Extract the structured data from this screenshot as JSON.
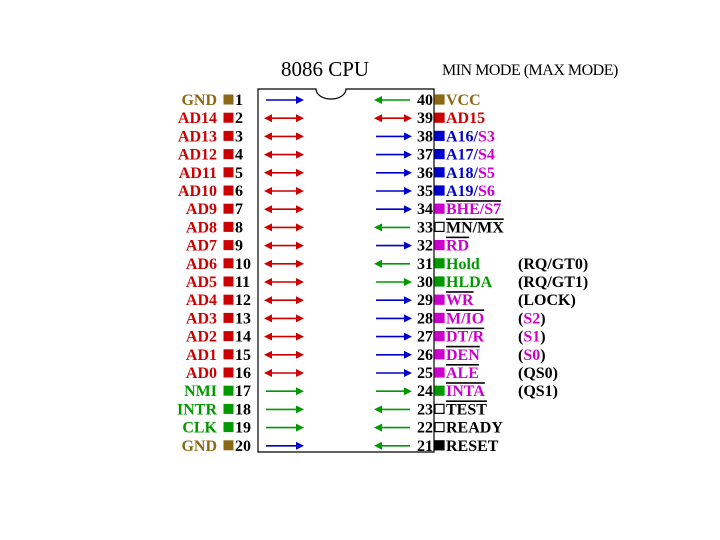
{
  "title": "8086 CPU",
  "mode_header": "MIN  MODE  (MAX  MODE)",
  "colors": {
    "power": "#8B6914",
    "address": "#CC0000",
    "status": "#0000CC",
    "control": "#009900",
    "magenta": "#CC00CC",
    "black": "#000000"
  },
  "left_pins": [
    {
      "num": "1",
      "name": "GND",
      "color": "#8B6914",
      "box": "power",
      "arrow": "in"
    },
    {
      "num": "2",
      "name": "AD14",
      "color": "#CC0000",
      "box": "address",
      "arrow": "bi"
    },
    {
      "num": "3",
      "name": "AD13",
      "color": "#CC0000",
      "box": "address",
      "arrow": "bi"
    },
    {
      "num": "4",
      "name": "AD12",
      "color": "#CC0000",
      "box": "address",
      "arrow": "bi"
    },
    {
      "num": "5",
      "name": "AD11",
      "color": "#CC0000",
      "box": "address",
      "arrow": "bi"
    },
    {
      "num": "6",
      "name": "AD10",
      "color": "#CC0000",
      "box": "address",
      "arrow": "bi"
    },
    {
      "num": "7",
      "name": "AD9",
      "color": "#CC0000",
      "box": "address",
      "arrow": "bi"
    },
    {
      "num": "8",
      "name": "AD8",
      "color": "#CC0000",
      "box": "address",
      "arrow": "bi"
    },
    {
      "num": "9",
      "name": "AD7",
      "color": "#CC0000",
      "box": "address",
      "arrow": "bi"
    },
    {
      "num": "10",
      "name": "AD6",
      "color": "#CC0000",
      "box": "address",
      "arrow": "bi"
    },
    {
      "num": "11",
      "name": "AD5",
      "color": "#CC0000",
      "box": "address",
      "arrow": "bi"
    },
    {
      "num": "12",
      "name": "AD4",
      "color": "#CC0000",
      "box": "address",
      "arrow": "bi"
    },
    {
      "num": "13",
      "name": "AD3",
      "color": "#CC0000",
      "box": "address",
      "arrow": "bi"
    },
    {
      "num": "14",
      "name": "AD2",
      "color": "#CC0000",
      "box": "address",
      "arrow": "bi"
    },
    {
      "num": "15",
      "name": "AD1",
      "color": "#CC0000",
      "box": "address",
      "arrow": "bi"
    },
    {
      "num": "16",
      "name": "AD0",
      "color": "#CC0000",
      "box": "address",
      "arrow": "bi"
    },
    {
      "num": "17",
      "name": "NMI",
      "color": "#009900",
      "box": "control",
      "arrow": "in"
    },
    {
      "num": "18",
      "name": "INTR",
      "color": "#009900",
      "box": "control",
      "arrow": "in"
    },
    {
      "num": "19",
      "name": "CLK",
      "color": "#009900",
      "box": "control",
      "arrow": "in"
    },
    {
      "num": "20",
      "name": "GND",
      "color": "#8B6914",
      "box": "power",
      "arrow": "in"
    }
  ],
  "right_pins": [
    {
      "num": "40",
      "box": "power",
      "arrow": "in",
      "arrow_color": "#009900",
      "segments": [
        {
          "text": "VCC",
          "color": "#8B6914"
        }
      ]
    },
    {
      "num": "39",
      "box": "address",
      "arrow": "bi",
      "arrow_color": "#CC0000",
      "segments": [
        {
          "text": "AD15",
          "color": "#CC0000"
        }
      ]
    },
    {
      "num": "38",
      "box": "status",
      "arrow": "out",
      "arrow_color": "#0000CC",
      "segments": [
        {
          "text": "A16/",
          "color": "#0000CC"
        },
        {
          "text": "S3",
          "color": "#CC00CC"
        }
      ]
    },
    {
      "num": "37",
      "box": "status",
      "arrow": "out",
      "arrow_color": "#0000CC",
      "segments": [
        {
          "text": "A17/",
          "color": "#0000CC"
        },
        {
          "text": "S4",
          "color": "#CC00CC"
        }
      ]
    },
    {
      "num": "36",
      "box": "status",
      "arrow": "out",
      "arrow_color": "#0000CC",
      "segments": [
        {
          "text": "A18/",
          "color": "#0000CC"
        },
        {
          "text": "S5",
          "color": "#CC00CC"
        }
      ]
    },
    {
      "num": "35",
      "box": "status",
      "arrow": "out",
      "arrow_color": "#0000CC",
      "segments": [
        {
          "text": "A19/",
          "color": "#0000CC"
        },
        {
          "text": "S6",
          "color": "#CC00CC"
        }
      ]
    },
    {
      "num": "34",
      "box": "magenta",
      "arrow": "out",
      "arrow_color": "#0000CC",
      "overline": true,
      "segments": [
        {
          "text": "BHE/S7",
          "color": "#CC00CC"
        }
      ]
    },
    {
      "num": "33",
      "box": "hollow",
      "arrow": "in",
      "arrow_color": "#009900",
      "overline": true,
      "segments": [
        {
          "text": "MN/MX",
          "color": "#000000"
        }
      ]
    },
    {
      "num": "32",
      "box": "magenta",
      "arrow": "out",
      "arrow_color": "#0000CC",
      "overline": true,
      "segments": [
        {
          "text": "RD",
          "color": "#CC00CC"
        }
      ]
    },
    {
      "num": "31",
      "box": "control",
      "arrow": "in",
      "arrow_color": "#009900",
      "segments": [
        {
          "text": "Hold",
          "color": "#009900"
        }
      ]
    },
    {
      "num": "30",
      "box": "control",
      "arrow": "out",
      "arrow_color": "#009900",
      "segments": [
        {
          "text": "HLDA",
          "color": "#009900"
        }
      ]
    },
    {
      "num": "29",
      "box": "magenta",
      "arrow": "out",
      "arrow_color": "#0000CC",
      "overline": true,
      "segments": [
        {
          "text": "WR",
          "color": "#CC00CC"
        }
      ]
    },
    {
      "num": "28",
      "box": "magenta",
      "arrow": "out",
      "arrow_color": "#0000CC",
      "overline": true,
      "segments": [
        {
          "text": "M/IO",
          "color": "#CC00CC"
        }
      ]
    },
    {
      "num": "27",
      "box": "magenta",
      "arrow": "out",
      "arrow_color": "#0000CC",
      "overline": true,
      "segments": [
        {
          "text": "DT/R",
          "color": "#CC00CC"
        }
      ]
    },
    {
      "num": "26",
      "box": "magenta",
      "arrow": "out",
      "arrow_color": "#0000CC",
      "overline": true,
      "segments": [
        {
          "text": "DEN",
          "color": "#CC00CC"
        }
      ]
    },
    {
      "num": "25",
      "box": "magenta",
      "arrow": "out",
      "arrow_color": "#0000CC",
      "overline": true,
      "segments": [
        {
          "text": "ALE",
          "color": "#CC00CC"
        }
      ]
    },
    {
      "num": "24",
      "box": "control",
      "arrow": "out",
      "arrow_color": "#009900",
      "overline": true,
      "segments": [
        {
          "text": "INTA",
          "color": "#CC00CC"
        }
      ]
    },
    {
      "num": "23",
      "box": "hollow",
      "arrow": "in",
      "arrow_color": "#009900",
      "overline": true,
      "segments": [
        {
          "text": "TEST",
          "color": "#000000"
        }
      ]
    },
    {
      "num": "22",
      "box": "hollow",
      "arrow": "in",
      "arrow_color": "#009900",
      "segments": [
        {
          "text": "READY",
          "color": "#000000"
        }
      ]
    },
    {
      "num": "21",
      "box": "black",
      "arrow": "in",
      "arrow_color": "#009900",
      "segments": [
        {
          "text": "RESET",
          "color": "#000000"
        }
      ]
    }
  ],
  "max_mode": [
    {
      "row": 9,
      "overline": true,
      "segments": [
        {
          "text": "(RQ/GT0)",
          "color": "#000000"
        }
      ]
    },
    {
      "row": 10,
      "overline": true,
      "segments": [
        {
          "text": "(RQ/GT1)",
          "color": "#000000"
        }
      ]
    },
    {
      "row": 11,
      "overline": true,
      "segments": [
        {
          "text": "(LOCK)",
          "color": "#000000"
        }
      ]
    },
    {
      "row": 12,
      "overline": true,
      "segments": [
        {
          "text": "(",
          "color": "#000000"
        },
        {
          "text": "S2",
          "color": "#CC00CC"
        },
        {
          "text": ")",
          "color": "#000000"
        }
      ]
    },
    {
      "row": 13,
      "overline": true,
      "segments": [
        {
          "text": "(",
          "color": "#000000"
        },
        {
          "text": "S1",
          "color": "#CC00CC"
        },
        {
          "text": ")",
          "color": "#000000"
        }
      ]
    },
    {
      "row": 14,
      "overline": true,
      "segments": [
        {
          "text": "(",
          "color": "#000000"
        },
        {
          "text": "S0",
          "color": "#CC00CC"
        },
        {
          "text": ")",
          "color": "#000000"
        }
      ]
    },
    {
      "row": 15,
      "segments": [
        {
          "text": "(QS0)",
          "color": "#000000"
        }
      ]
    },
    {
      "row": 16,
      "segments": [
        {
          "text": "(QS1)",
          "color": "#000000"
        }
      ]
    }
  ]
}
